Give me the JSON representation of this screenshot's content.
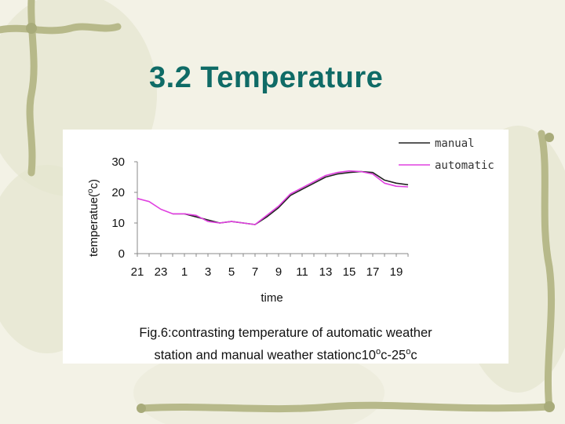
{
  "slide": {
    "title": "3.2 Temperature"
  },
  "figure": {
    "caption_line1": "Fig.6:contrasting temperature of automatic weather",
    "caption_line2_prefix": "station and manual weather stationc10",
    "caption_sup1": "o",
    "caption_mid": "c-25",
    "caption_sup2": "o",
    "caption_suffix": "c"
  },
  "chart_data": {
    "type": "line",
    "xlabel": "time",
    "ylabel": "temperatue(",
    "ylabel_sup": "o",
    "ylabel_suffix": "c)",
    "ylim": [
      0,
      30
    ],
    "yticks": [
      0,
      10,
      20,
      30
    ],
    "x_tick_labels": [
      "21",
      "23",
      "1",
      "3",
      "5",
      "7",
      "9",
      "11",
      "13",
      "15",
      "17",
      "19"
    ],
    "x_hours": [
      21,
      22,
      23,
      24,
      25,
      26,
      27,
      28,
      29,
      30,
      31,
      32,
      33,
      34,
      35,
      36,
      37,
      38,
      39,
      40,
      41,
      42,
      43,
      44
    ],
    "legend_position": "top-right",
    "grid": false,
    "colors": {
      "manual": "#222222",
      "automatic": "#e040e0"
    },
    "series": [
      {
        "name": "manual",
        "values": [
          null,
          null,
          null,
          13,
          13,
          12,
          11,
          10,
          10.5,
          10,
          9.5,
          12,
          15,
          19,
          21,
          23,
          25,
          26,
          26.5,
          26.8,
          26.5,
          24,
          23,
          22.5
        ]
      },
      {
        "name": "automatic",
        "values": [
          18,
          17,
          14.5,
          13,
          13,
          12.5,
          10.5,
          10,
          10.5,
          10,
          9.5,
          12.5,
          15.5,
          19.5,
          21.5,
          23.5,
          25.5,
          26.5,
          27,
          26.8,
          26,
          23,
          22,
          21.8
        ]
      }
    ]
  }
}
